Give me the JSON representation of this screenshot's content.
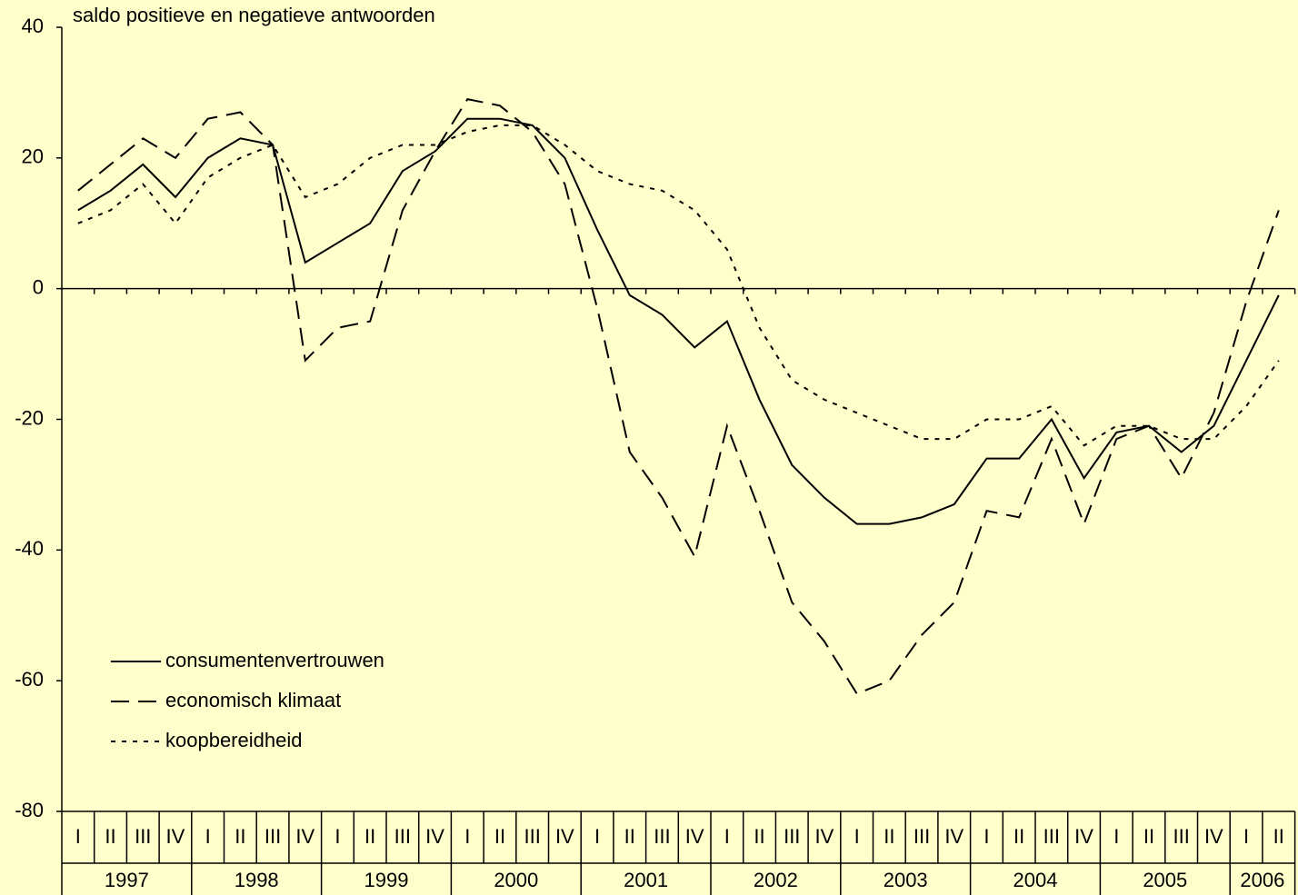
{
  "chart_data": {
    "type": "line",
    "ylabel": "saldo positieve en negatieve antwoorden",
    "categories": [
      "I",
      "II",
      "III",
      "IV",
      "I",
      "II",
      "III",
      "IV",
      "I",
      "II",
      "III",
      "IV",
      "I",
      "II",
      "III",
      "IV",
      "I",
      "II",
      "III",
      "IV",
      "I",
      "II",
      "III",
      "IV",
      "I",
      "II",
      "III",
      "IV",
      "I",
      "II",
      "III",
      "IV",
      "I",
      "II",
      "III",
      "IV",
      "I",
      "II"
    ],
    "years": [
      "1997",
      "1998",
      "1999",
      "2000",
      "2001",
      "2002",
      "2003",
      "2004",
      "2005",
      "2006"
    ],
    "series": [
      {
        "name": "consumentenvertrouwen",
        "color": "#000000",
        "dash": "solid",
        "values": [
          12,
          15,
          19,
          14,
          20,
          23,
          22,
          4,
          7,
          10,
          18,
          21,
          26,
          26,
          25,
          20,
          9,
          -1,
          -4,
          -9,
          -5,
          -17,
          -27,
          -32,
          -36,
          -36,
          -35,
          -33,
          -26,
          -26,
          -20,
          -29,
          -22,
          -21,
          -25,
          -21,
          -11,
          -1
        ]
      },
      {
        "name": "economisch klimaat",
        "color": "#000000",
        "dash": "dashed",
        "values": [
          15,
          19,
          23,
          20,
          26,
          27,
          22,
          -11,
          -6,
          -5,
          12,
          21,
          29,
          28,
          24,
          16,
          -3,
          -25,
          -32,
          -41,
          -21,
          -34,
          -48,
          -54,
          -62,
          -60,
          -53,
          -48,
          -34,
          -35,
          -23,
          -36,
          -23,
          -21,
          -29,
          -19,
          -2,
          12
        ]
      },
      {
        "name": "koopbereidheid",
        "color": "#000000",
        "dash": "dotted",
        "values": [
          10,
          12,
          16,
          10,
          17,
          20,
          22,
          14,
          16,
          20,
          22,
          22,
          24,
          25,
          25,
          22,
          18,
          16,
          15,
          12,
          6,
          -6,
          -14,
          -17,
          -19,
          -21,
          -23,
          -23,
          -20,
          -20,
          -18,
          -24,
          -21,
          -21,
          -23,
          -23,
          -18,
          -11
        ]
      }
    ],
    "ylim": [
      -80,
      40
    ],
    "yticks": [
      -80,
      -60,
      -40,
      -20,
      0,
      20,
      40
    ],
    "legend": "lower left"
  }
}
